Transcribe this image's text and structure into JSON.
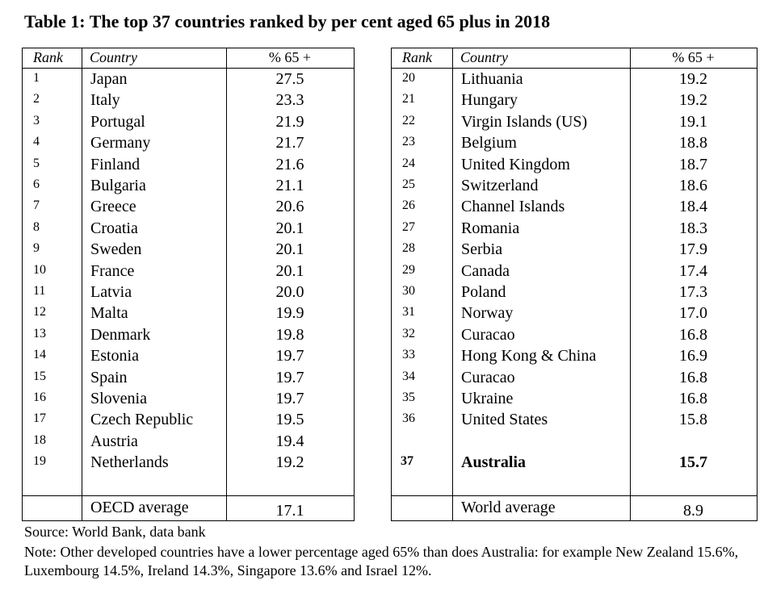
{
  "title": "Table 1: The top 37 countries ranked by per cent aged 65 plus in 2018",
  "tables": [
    {
      "header": [
        "Rank",
        "Country",
        "% 65 +"
      ],
      "rows": [
        [
          "1",
          "Japan",
          "27.5"
        ],
        [
          "2",
          "Italy",
          "23.3"
        ],
        [
          "3",
          "Portugal",
          "21.9"
        ],
        [
          "4",
          "Germany",
          "21.7"
        ],
        [
          "5",
          "Finland",
          "21.6"
        ],
        [
          "6",
          "Bulgaria",
          "21.1"
        ],
        [
          "7",
          "Greece",
          "20.6"
        ],
        [
          "8",
          "Croatia",
          "20.1"
        ],
        [
          "9",
          "Sweden",
          "20.1"
        ],
        [
          "10",
          "France",
          "20.1"
        ],
        [
          "11",
          "Latvia",
          "20.0"
        ],
        [
          "12",
          "Malta",
          "19.9"
        ],
        [
          "13",
          "Denmark",
          "19.8"
        ],
        [
          "14",
          "Estonia",
          "19.7"
        ],
        [
          "15",
          "Spain",
          "19.7"
        ],
        [
          "16",
          "Slovenia",
          "19.7"
        ],
        [
          "17",
          "Czech Republic",
          "19.5"
        ],
        [
          "18",
          "Austria",
          "19.4"
        ],
        [
          "19",
          "Netherlands",
          "19.2"
        ]
      ],
      "footer": [
        "OECD average",
        "17.1"
      ]
    },
    {
      "header": [
        "Rank",
        "Country",
        "% 65 +"
      ],
      "rows": [
        [
          "20",
          "Lithuania",
          "19.2"
        ],
        [
          "21",
          "Hungary",
          "19.2"
        ],
        [
          "22",
          "Virgin Islands (US)",
          "19.1"
        ],
        [
          "23",
          "Belgium",
          "18.8"
        ],
        [
          "24",
          "United Kingdom",
          "18.7"
        ],
        [
          "25",
          "Switzerland",
          "18.6"
        ],
        [
          "26",
          "Channel Islands",
          "18.4"
        ],
        [
          "27",
          "Romania",
          "18.3"
        ],
        [
          "28",
          "Serbia",
          "17.9"
        ],
        [
          "29",
          "Canada",
          "17.4"
        ],
        [
          "30",
          "Poland",
          "17.3"
        ],
        [
          "31",
          "Norway",
          "17.0"
        ],
        [
          "32",
          "Curacao",
          "16.8"
        ],
        [
          "33",
          "Hong Kong & China",
          "16.9"
        ],
        [
          "34",
          "Curacao",
          "16.8"
        ],
        [
          "35",
          "Ukraine",
          "16.8"
        ],
        [
          "36",
          "United States",
          "15.8"
        ],
        [
          "37",
          "Australia",
          "15.7"
        ]
      ],
      "bold_row": 17,
      "footer": [
        "World average",
        "8.9"
      ]
    }
  ],
  "source": "Source: World Bank, data bank",
  "note": "Note: Other developed countries have a lower percentage aged 65% than does Australia: for example New Zealand 15.6%, Luxembourg 14.5%, Ireland 14.3%, Singapore 13.6% and Israel 12%."
}
